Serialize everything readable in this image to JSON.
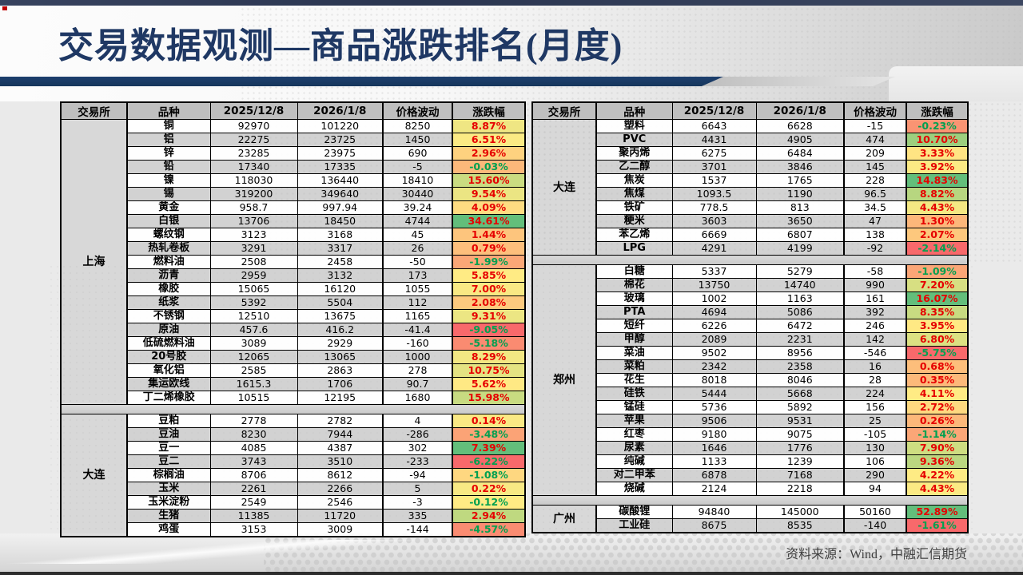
{
  "slide": {
    "title": "交易数据观测—商品涨跌排名(月度)",
    "source_note": "资料来源：Wind，中融汇信期货"
  },
  "colors": {
    "positive_text": "#e60000",
    "negative_text": "#00a050",
    "scale_min": "#F8696B",
    "scale_mid": "#FFEB84",
    "scale_max": "#63BE7B",
    "title_blue": "#1f3864"
  },
  "table": {
    "columns": [
      "交易所",
      "品种",
      "2025/12/8",
      "2026/1/8",
      "价格波动",
      "涨跌幅"
    ],
    "left_sections": [
      {
        "exchange": "上海",
        "rows": [
          [
            "铜",
            "92970",
            "101220",
            "8250",
            "8.87%"
          ],
          [
            "铝",
            "22275",
            "23725",
            "1450",
            "6.51%"
          ],
          [
            "锌",
            "23285",
            "23975",
            "690",
            "2.96%"
          ],
          [
            "铅",
            "17340",
            "17335",
            "-5",
            "-0.03%"
          ],
          [
            "镍",
            "118030",
            "136440",
            "18410",
            "15.60%"
          ],
          [
            "锡",
            "319200",
            "349640",
            "30440",
            "9.54%"
          ],
          [
            "黄金",
            "958.7",
            "997.94",
            "39.24",
            "4.09%"
          ],
          [
            "白银",
            "13706",
            "18450",
            "4744",
            "34.61%"
          ],
          [
            "螺纹钢",
            "3123",
            "3168",
            "45",
            "1.44%"
          ],
          [
            "热轧卷板",
            "3291",
            "3317",
            "26",
            "0.79%"
          ],
          [
            "燃料油",
            "2508",
            "2458",
            "-50",
            "-1.99%"
          ],
          [
            "沥青",
            "2959",
            "3132",
            "173",
            "5.85%"
          ],
          [
            "橡胶",
            "15065",
            "16120",
            "1055",
            "7.00%"
          ],
          [
            "纸浆",
            "5392",
            "5504",
            "112",
            "2.08%"
          ],
          [
            "不锈钢",
            "12510",
            "13675",
            "1165",
            "9.31%"
          ],
          [
            "原油",
            "457.6",
            "416.2",
            "-41.4",
            "-9.05%"
          ],
          [
            "低硫燃料油",
            "3089",
            "2929",
            "-160",
            "-5.18%"
          ],
          [
            "20号胶",
            "12065",
            "13065",
            "1000",
            "8.29%"
          ],
          [
            "氧化铝",
            "2585",
            "2863",
            "278",
            "10.75%"
          ],
          [
            "集运欧线",
            "1615.3",
            "1706",
            "90.7",
            "5.62%"
          ],
          [
            "丁二烯橡胶",
            "10515",
            "12195",
            "1680",
            "15.98%"
          ]
        ]
      },
      {
        "exchange": "大连",
        "rows": [
          [
            "豆粕",
            "2778",
            "2782",
            "4",
            "0.14%"
          ],
          [
            "豆油",
            "8230",
            "7944",
            "-286",
            "-3.48%"
          ],
          [
            "豆一",
            "4085",
            "4387",
            "302",
            "7.39%"
          ],
          [
            "豆二",
            "3743",
            "3510",
            "-233",
            "-6.22%"
          ],
          [
            "棕榈油",
            "8706",
            "8612",
            "-94",
            "-1.08%"
          ],
          [
            "玉米",
            "2261",
            "2266",
            "5",
            "0.22%"
          ],
          [
            "玉米淀粉",
            "2549",
            "2546",
            "-3",
            "-0.12%"
          ],
          [
            "生猪",
            "11385",
            "11720",
            "335",
            "2.94%"
          ],
          [
            "鸡蛋",
            "3153",
            "3009",
            "-144",
            "-4.57%"
          ]
        ]
      }
    ],
    "right_sections": [
      {
        "exchange": "大连",
        "rows": [
          [
            "塑料",
            "6643",
            "6628",
            "-15",
            "-0.23%"
          ],
          [
            "PVC",
            "4431",
            "4905",
            "474",
            "10.70%"
          ],
          [
            "聚丙烯",
            "6275",
            "6484",
            "209",
            "3.33%"
          ],
          [
            "乙二醇",
            "3701",
            "3846",
            "145",
            "3.92%"
          ],
          [
            "焦炭",
            "1537",
            "1765",
            "228",
            "14.83%"
          ],
          [
            "焦煤",
            "1093.5",
            "1190",
            "96.5",
            "8.82%"
          ],
          [
            "铁矿",
            "778.5",
            "813",
            "34.5",
            "4.43%"
          ],
          [
            "粳米",
            "3603",
            "3650",
            "47",
            "1.30%"
          ],
          [
            "苯乙烯",
            "6669",
            "6807",
            "138",
            "2.07%"
          ],
          [
            "LPG",
            "4291",
            "4199",
            "-92",
            "-2.14%"
          ]
        ]
      },
      {
        "exchange": "郑州",
        "rows": [
          [
            "白糖",
            "5337",
            "5279",
            "-58",
            "-1.09%"
          ],
          [
            "棉花",
            "13750",
            "14740",
            "990",
            "7.20%"
          ],
          [
            "玻璃",
            "1002",
            "1163",
            "161",
            "16.07%"
          ],
          [
            "PTA",
            "4694",
            "5086",
            "392",
            "8.35%"
          ],
          [
            "短纤",
            "6226",
            "6472",
            "246",
            "3.95%"
          ],
          [
            "甲醇",
            "2089",
            "2231",
            "142",
            "6.80%"
          ],
          [
            "菜油",
            "9502",
            "8956",
            "-546",
            "-5.75%"
          ],
          [
            "菜粕",
            "2342",
            "2358",
            "16",
            "0.68%"
          ],
          [
            "花生",
            "8018",
            "8046",
            "28",
            "0.35%"
          ],
          [
            "硅铁",
            "5444",
            "5668",
            "224",
            "4.11%"
          ],
          [
            "锰硅",
            "5736",
            "5892",
            "156",
            "2.72%"
          ],
          [
            "苹果",
            "9506",
            "9531",
            "25",
            "0.26%"
          ],
          [
            "红枣",
            "9180",
            "9075",
            "-105",
            "-1.14%"
          ],
          [
            "尿素",
            "1646",
            "1776",
            "130",
            "7.90%"
          ],
          [
            "纯碱",
            "1133",
            "1239",
            "106",
            "9.36%"
          ],
          [
            "对二甲苯",
            "6878",
            "7168",
            "290",
            "4.22%"
          ],
          [
            "烧碱",
            "2124",
            "2218",
            "94",
            "4.43%"
          ]
        ]
      },
      {
        "exchange": "广州",
        "rows": [
          [
            "碳酸锂",
            "94840",
            "145000",
            "50160",
            "52.89%"
          ],
          [
            "工业硅",
            "8675",
            "8535",
            "-140",
            "-1.61%"
          ]
        ]
      }
    ]
  }
}
